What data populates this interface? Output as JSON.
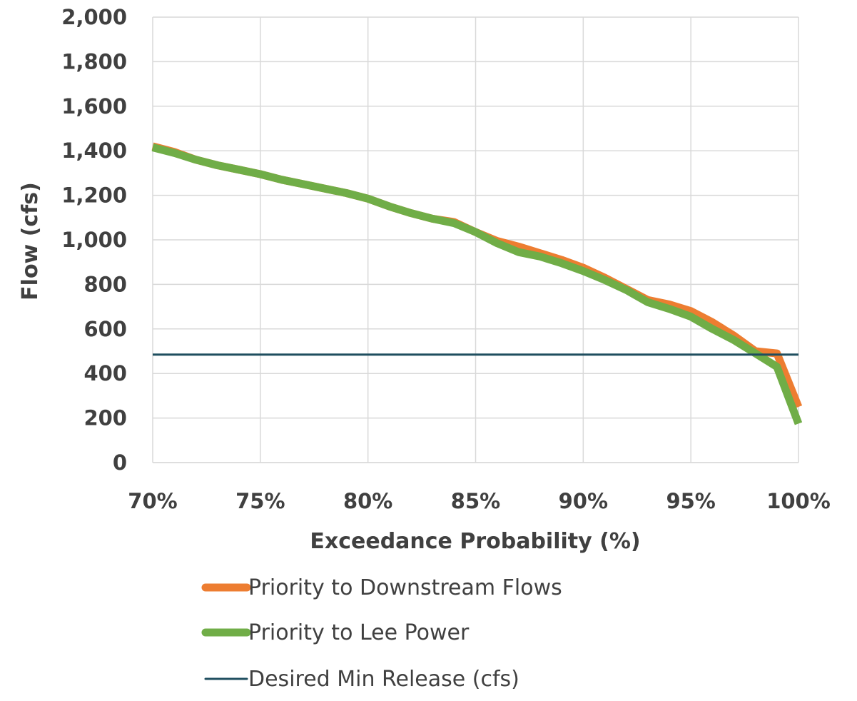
{
  "chart_data": {
    "type": "line",
    "title": "",
    "xlabel": "Exceedance Probability (%)",
    "ylabel": "Flow (cfs)",
    "xlim": [
      70,
      100
    ],
    "ylim": [
      0,
      2000
    ],
    "x_ticks": [
      70,
      75,
      80,
      85,
      90,
      95,
      100
    ],
    "x_tick_labels": [
      "70%",
      "75%",
      "80%",
      "85%",
      "90%",
      "95%",
      "100%"
    ],
    "y_ticks": [
      0,
      200,
      400,
      600,
      800,
      1000,
      1200,
      1400,
      1600,
      1800,
      2000
    ],
    "y_tick_labels": [
      "0",
      "200",
      "400",
      "600",
      "800",
      "1,000",
      "1,200",
      "1,400",
      "1,600",
      "1,800",
      "2,000"
    ],
    "grid": true,
    "legend_position": "bottom",
    "series": [
      {
        "name": "Priority to Downstream Flows",
        "color": "#ED7D31",
        "x": [
          70,
          71,
          72,
          73,
          74,
          75,
          76,
          77,
          78,
          79,
          80,
          81,
          82,
          83,
          84,
          85,
          86,
          87,
          88,
          89,
          90,
          91,
          92,
          93,
          94,
          95,
          96,
          97,
          98,
          99,
          100
        ],
        "values": [
          1420,
          1395,
          1360,
          1335,
          1315,
          1295,
          1270,
          1250,
          1230,
          1210,
          1185,
          1150,
          1120,
          1095,
          1080,
          1035,
          995,
          970,
          940,
          910,
          875,
          830,
          780,
          730,
          710,
          680,
          630,
          570,
          500,
          490,
          250
        ]
      },
      {
        "name": "Priority to Lee Power",
        "color": "#70AD47",
        "x": [
          70,
          71,
          72,
          73,
          74,
          75,
          76,
          77,
          78,
          79,
          80,
          81,
          82,
          83,
          84,
          85,
          86,
          87,
          88,
          89,
          90,
          91,
          92,
          93,
          94,
          95,
          96,
          97,
          98,
          99,
          100
        ],
        "values": [
          1415,
          1390,
          1360,
          1335,
          1315,
          1295,
          1270,
          1250,
          1230,
          1210,
          1185,
          1150,
          1120,
          1095,
          1075,
          1035,
          985,
          945,
          925,
          895,
          860,
          820,
          775,
          720,
          690,
          655,
          600,
          550,
          490,
          430,
          175
        ]
      },
      {
        "name": "Desired Min Release (cfs)",
        "color": "#1F4E5F",
        "x": [
          70,
          100
        ],
        "values": [
          485,
          485
        ]
      }
    ]
  }
}
